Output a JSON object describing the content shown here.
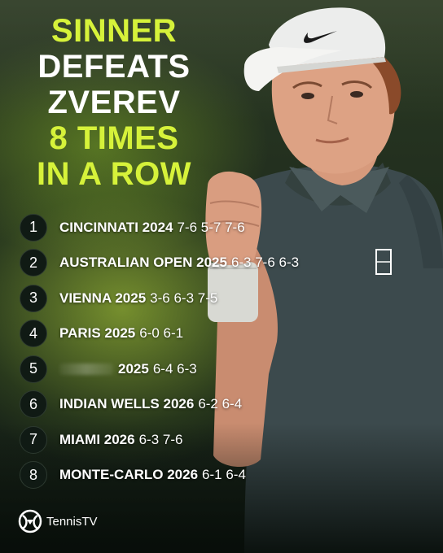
{
  "headline": {
    "line1": "SINNER",
    "line2": "DEFEATS",
    "line3": "ZVEREV",
    "line4": "8 TIMES",
    "line5": "IN A ROW"
  },
  "results": [
    {
      "num": "1",
      "event": "CINCINNATI 2024",
      "score": "7-6 5-7 7-6"
    },
    {
      "num": "2",
      "event": "AUSTRALIAN OPEN 2025",
      "score": "6-3 7-6 6-3"
    },
    {
      "num": "3",
      "event": "VIENNA 2025",
      "score": "3-6 6-3 7-5"
    },
    {
      "num": "4",
      "event": "PARIS 2025",
      "score": "6-0 6-1"
    },
    {
      "num": "5",
      "event": "2025",
      "score": "6-4 6-3"
    },
    {
      "num": "6",
      "event": "INDIAN WELLS 2026",
      "score": "6-2 6-4"
    },
    {
      "num": "7",
      "event": "MIAMI 2026",
      "score": "6-3 7-6"
    },
    {
      "num": "8",
      "event": "MONTE-CARLO 2026",
      "score": "6-1 6-4"
    }
  ],
  "logo": {
    "text": "TennisTV"
  },
  "colors": {
    "accent": "#d6f23a",
    "text": "#ffffff",
    "badge_bg": "#101a14",
    "shirt": "#3c4a4d"
  },
  "icons": {
    "logo": "tennis-tv-logo-icon",
    "cap": "cap-swoosh-icon"
  }
}
